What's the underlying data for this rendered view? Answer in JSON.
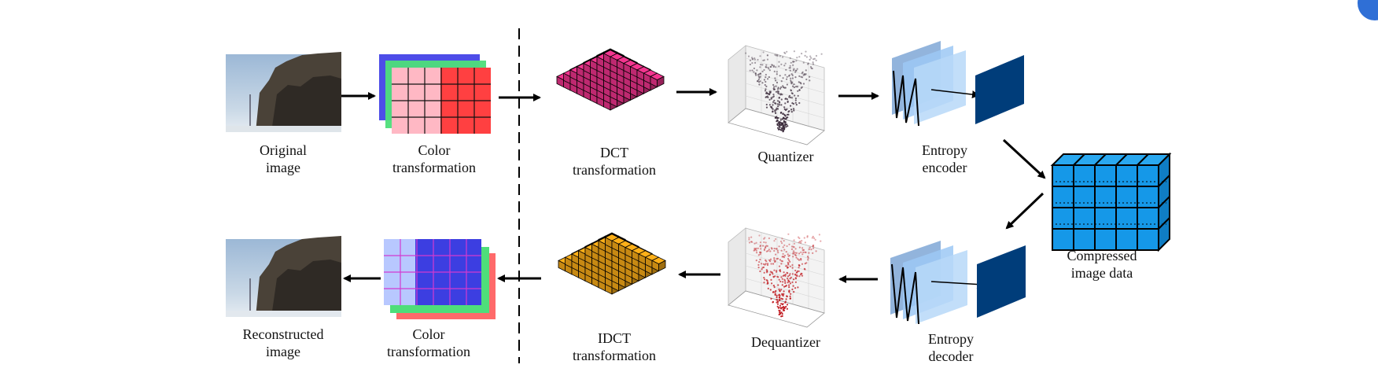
{
  "labels": {
    "original_image": [
      "Original",
      "image"
    ],
    "color_transformation_top": [
      "Color",
      "transformation"
    ],
    "dct_transformation": [
      "DCT",
      "transformation"
    ],
    "quantizer": [
      "Quantizer"
    ],
    "entropy_encoder": [
      "Entropy",
      "encoder"
    ],
    "compressed_image_data": [
      "Compressed",
      "image data"
    ],
    "entropy_decoder": [
      "Entropy",
      "decoder"
    ],
    "dequantizer": [
      "Dequantizer"
    ],
    "idct_transformation": [
      "IDCT",
      "transformation"
    ],
    "color_transformation_bottom": [
      "Color",
      "transformation"
    ],
    "reconstructed_image": [
      "Reconstructed",
      "image"
    ]
  },
  "colors": {
    "dct_top": "#c40d0d",
    "dct_bottom": "#ff3fb0",
    "idct_top": "#ff6a10",
    "idct_bottom": "#ffc21a",
    "compressed_cube": "#1598e8",
    "entropy_panel": "#8cc4f5",
    "entropy_output": "#003d7a",
    "quantizer_points": "#3a2a3a",
    "dequantizer_points": "#c0191f",
    "color_red": "#ff2a2a",
    "color_blue": "#2828e0",
    "color_green": "#22cc44",
    "sky": "#a9c2dc"
  },
  "icons": [
    "original-image-photo",
    "reconstructed-image-photo",
    "color-channel-stack",
    "dct-block-pyramid",
    "3d-scatter-plot",
    "entropy-zigzag-panels",
    "data-cube"
  ]
}
